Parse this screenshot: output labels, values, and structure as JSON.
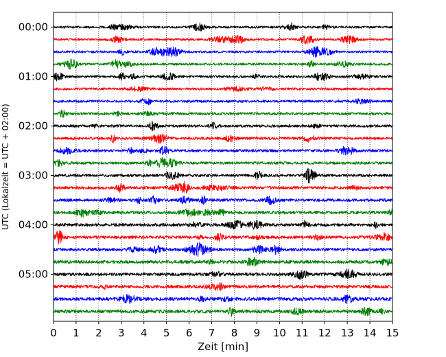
{
  "chart_data": {
    "type": "line",
    "title": "",
    "xlabel": "Zeit  [min]",
    "ylabel": "UTC (Lokalzeit = UTC + 02:00)",
    "xlim": [
      0,
      15
    ],
    "x_ticks": [
      "0",
      "1",
      "2",
      "3",
      "4",
      "5",
      "6",
      "7",
      "8",
      "9",
      "10",
      "11",
      "12",
      "13",
      "14",
      "15"
    ],
    "y_ticks": [
      "00:00",
      "01:00",
      "02:00",
      "03:00",
      "04:00",
      "05:00"
    ],
    "grid": "vertical dotted lines at each minute",
    "trace_interval_minutes": 15,
    "trace_colors": [
      "#000000",
      "#ff0000",
      "#0000ff",
      "#008000"
    ],
    "series": [
      {
        "start": "00:00",
        "color": "#000000"
      },
      {
        "start": "00:15",
        "color": "#ff0000"
      },
      {
        "start": "00:30",
        "color": "#0000ff"
      },
      {
        "start": "00:45",
        "color": "#008000"
      },
      {
        "start": "01:00",
        "color": "#000000"
      },
      {
        "start": "01:15",
        "color": "#ff0000"
      },
      {
        "start": "01:30",
        "color": "#0000ff"
      },
      {
        "start": "01:45",
        "color": "#008000"
      },
      {
        "start": "02:00",
        "color": "#000000"
      },
      {
        "start": "02:15",
        "color": "#ff0000"
      },
      {
        "start": "02:30",
        "color": "#0000ff"
      },
      {
        "start": "02:45",
        "color": "#008000"
      },
      {
        "start": "03:00",
        "color": "#000000"
      },
      {
        "start": "03:15",
        "color": "#ff0000"
      },
      {
        "start": "03:30",
        "color": "#0000ff"
      },
      {
        "start": "03:45",
        "color": "#008000"
      },
      {
        "start": "04:00",
        "color": "#000000"
      },
      {
        "start": "04:15",
        "color": "#ff0000"
      },
      {
        "start": "04:30",
        "color": "#0000ff"
      },
      {
        "start": "04:45",
        "color": "#008000"
      },
      {
        "start": "05:00",
        "color": "#000000"
      },
      {
        "start": "05:15",
        "color": "#ff0000"
      },
      {
        "start": "05:30",
        "color": "#0000ff"
      },
      {
        "start": "05:45",
        "color": "#008000"
      }
    ]
  }
}
